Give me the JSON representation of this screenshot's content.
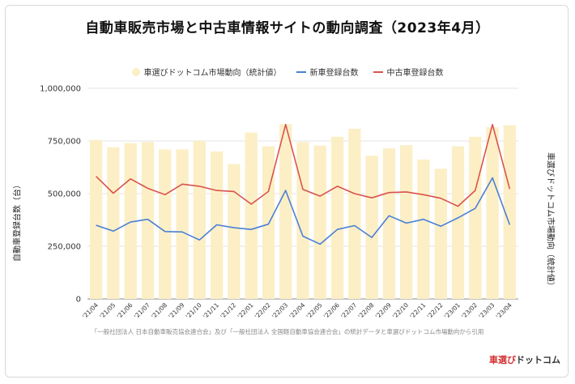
{
  "title": "自動車販売市場と中古車情報サイトの動向調査（2023年4月）",
  "source_note": "「一般社団法人 日本自動車販売協会連合会」及び「一般社団法人 全国軽自動車協会連合会」の統計データと車選びドットコム市場動向から引用",
  "logo": {
    "part1": "車選び",
    "part2": "ドットコム"
  },
  "colors": {
    "bar": "#fcefc6",
    "new_car": "#4a7fd6",
    "used_car": "#d9534f",
    "grid": "#e3e3e3"
  },
  "chart_data": {
    "type": "bar",
    "title": "自動車販売市場と中古車情報サイトの動向調査（2023年4月）",
    "ylabel": "自動車登録台数（台）",
    "y2label": "車選びドットコム市場動向（統計値）",
    "ylim": [
      0,
      1000000
    ],
    "yticks": [
      "0",
      "250,000",
      "500,000",
      "750,000",
      "1,000,000"
    ],
    "ytick_values": [
      0,
      250000,
      500000,
      750000,
      1000000
    ],
    "legend_position": "top",
    "grid": true,
    "categories": [
      "'21/04",
      "'21/05",
      "'21/06",
      "'21/07",
      "'21/08",
      "'21/09",
      "'21/10",
      "'21/11",
      "'21/12",
      "'22/01",
      "'22/02",
      "'22/03",
      "'22/04",
      "'22/05",
      "'22/06",
      "'22/07",
      "'22/08",
      "'22/09",
      "'22/10",
      "'22/11",
      "'22/12",
      "'23/01",
      "'23/02",
      "'23/03",
      "'23/04"
    ],
    "series": [
      {
        "name": "車選びドットコム市場動向（統計値）",
        "kind": "bar",
        "values": [
          755000,
          720000,
          740000,
          745000,
          710000,
          710000,
          750000,
          700000,
          640000,
          790000,
          725000,
          830000,
          745000,
          728000,
          770000,
          808000,
          680000,
          715000,
          730000,
          662000,
          618000,
          725000,
          770000,
          815000,
          825000
        ]
      },
      {
        "name": "新車登録台数",
        "kind": "line",
        "values": [
          350000,
          322000,
          365000,
          378000,
          320000,
          318000,
          280000,
          352000,
          338000,
          330000,
          355000,
          515000,
          298000,
          260000,
          330000,
          348000,
          292000,
          395000,
          360000,
          378000,
          345000,
          385000,
          430000,
          575000,
          352000
        ]
      },
      {
        "name": "中古車登録台数",
        "kind": "line",
        "values": [
          582000,
          502000,
          570000,
          525000,
          495000,
          545000,
          535000,
          515000,
          510000,
          450000,
          510000,
          828000,
          520000,
          488000,
          535000,
          500000,
          480000,
          505000,
          508000,
          495000,
          478000,
          440000,
          515000,
          828000,
          522000
        ]
      }
    ]
  }
}
